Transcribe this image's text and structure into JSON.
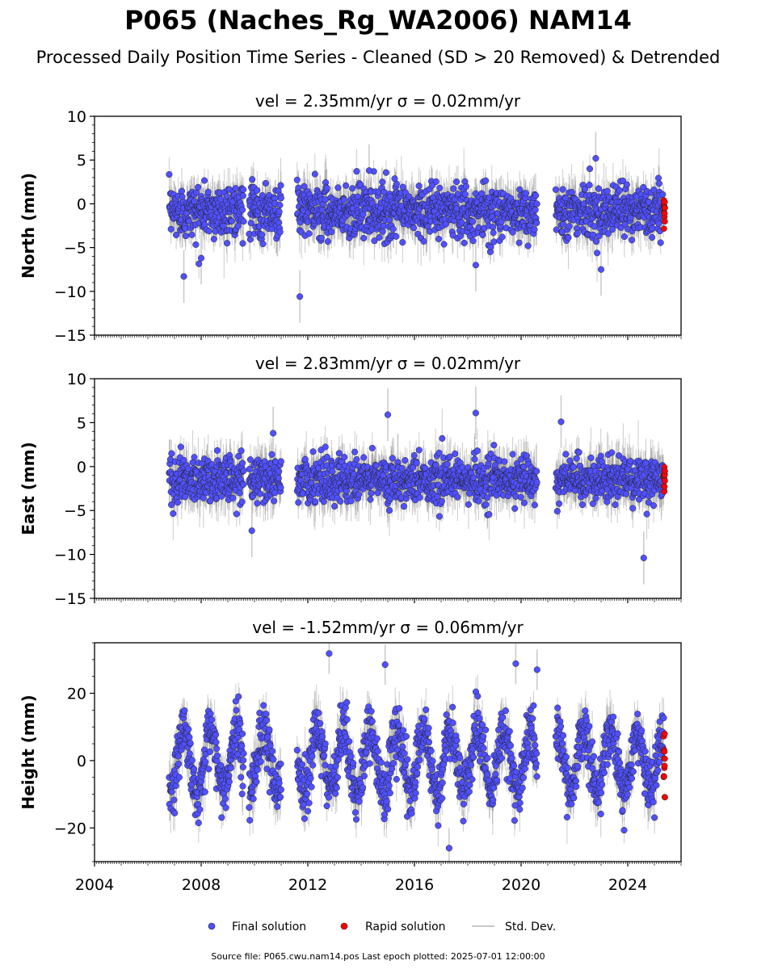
{
  "title": "P065 (Naches_Rg_WA2006) NAM14",
  "subtitle": "Processed Daily Position Time Series - Cleaned (SD > 20 Removed) & Detrended",
  "legend": {
    "final": "Final solution",
    "rapid": "Rapid solution",
    "std": "Std. Dev."
  },
  "footer": "Source file: P065.cwu.nam14.pos  Last epoch plotted: 2025-07-01 12:00:00",
  "colors": {
    "final": "#5050ff",
    "rapid": "#ff0000",
    "std": "#c8c8c8",
    "edge": "#222222"
  },
  "chart_data": [
    {
      "type": "scatter",
      "ylabel": "North (mm)",
      "annotation": "vel = 2.35mm/yr   σ = 0.02mm/yr",
      "xlim": [
        2004.0,
        2026.0
      ],
      "ylim": [
        -15,
        10
      ],
      "yticks": [
        10,
        5,
        0,
        -5,
        -10,
        -15
      ],
      "ytick_labels": [
        "10",
        "5",
        "0",
        "−5",
        "−10",
        "−15"
      ],
      "data_segments": [
        [
          2006.8,
          2009.6
        ],
        [
          2009.8,
          2011.0
        ],
        [
          2011.6,
          2020.6
        ],
        [
          2021.3,
          2025.35
        ]
      ],
      "rapid_range": [
        2025.35,
        2025.5
      ],
      "scatter_sd": 1.5,
      "series": [
        {
          "name": "Final solution",
          "note": "daily positions, scatter about 0"
        },
        {
          "name": "Rapid solution",
          "note": "final months"
        }
      ],
      "outliers": [
        {
          "x": 2007.35,
          "y": -8.3
        },
        {
          "x": 2008.0,
          "y": -6.2
        },
        {
          "x": 2011.7,
          "y": -10.6
        },
        {
          "x": 2018.3,
          "y": -7.0
        },
        {
          "x": 2022.8,
          "y": 5.2
        },
        {
          "x": 2023.0,
          "y": -7.5
        },
        {
          "x": 2014.3,
          "y": 3.8
        }
      ],
      "xticks": [
        2004,
        2008,
        2012,
        2016,
        2020,
        2024
      ],
      "xtick_labels": []
    },
    {
      "type": "scatter",
      "ylabel": "East (mm)",
      "annotation": "vel = 2.83mm/yr   σ = 0.02mm/yr",
      "xlim": [
        2004.0,
        2026.0
      ],
      "ylim": [
        -15,
        10
      ],
      "yticks": [
        10,
        5,
        0,
        -5,
        -10,
        -15
      ],
      "ytick_labels": [
        "10",
        "5",
        "0",
        "−5",
        "−10",
        "−15"
      ],
      "data_segments": [
        [
          2006.8,
          2009.6
        ],
        [
          2009.8,
          2011.0
        ],
        [
          2011.6,
          2020.6
        ],
        [
          2021.3,
          2025.35
        ]
      ],
      "rapid_range": [
        2025.35,
        2025.5
      ],
      "scatter_sd": 1.3,
      "series": [
        {
          "name": "Final solution",
          "note": "daily positions, scatter about -1.5"
        },
        {
          "name": "Rapid solution",
          "note": "final months"
        }
      ],
      "outliers": [
        {
          "x": 2009.9,
          "y": -7.3
        },
        {
          "x": 2015.0,
          "y": 5.9
        },
        {
          "x": 2018.3,
          "y": 6.1
        },
        {
          "x": 2021.5,
          "y": 5.1
        },
        {
          "x": 2024.6,
          "y": -10.4
        },
        {
          "x": 2010.7,
          "y": 3.8
        }
      ],
      "xticks": [
        2004,
        2008,
        2012,
        2016,
        2020,
        2024
      ],
      "xtick_labels": []
    },
    {
      "type": "scatter",
      "ylabel": "Height (mm)",
      "annotation": "vel = -1.52mm/yr   σ = 0.06mm/yr",
      "xlim": [
        2004.0,
        2026.0
      ],
      "ylim": [
        -30,
        35
      ],
      "yticks": [
        20,
        0,
        -20
      ],
      "ytick_labels": [
        "20",
        "0",
        "−20"
      ],
      "data_segments": [
        [
          2006.8,
          2009.6
        ],
        [
          2009.8,
          2011.0
        ],
        [
          2011.6,
          2020.6
        ],
        [
          2021.3,
          2025.35
        ]
      ],
      "rapid_range": [
        2025.35,
        2025.5
      ],
      "scatter_sd": 4.0,
      "seasonal_amplitude": 9,
      "series": [
        {
          "name": "Final solution",
          "note": "strong annual cycle about 0"
        },
        {
          "name": "Rapid solution",
          "note": "final months"
        }
      ],
      "outliers": [
        {
          "x": 2012.8,
          "y": 31.8
        },
        {
          "x": 2014.9,
          "y": 28.5
        },
        {
          "x": 2019.8,
          "y": 28.8
        },
        {
          "x": 2020.6,
          "y": 27.0
        },
        {
          "x": 2017.3,
          "y": -26.0
        }
      ],
      "xticks": [
        2004,
        2008,
        2012,
        2016,
        2020,
        2024
      ],
      "xtick_labels": [
        "2004",
        "2008",
        "2012",
        "2016",
        "2020",
        "2024"
      ]
    }
  ]
}
